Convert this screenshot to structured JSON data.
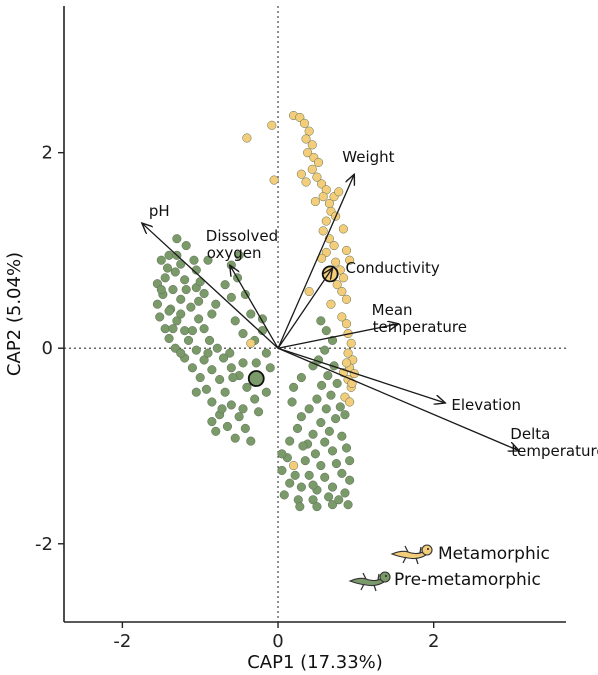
{
  "chart_data": {
    "type": "scatter",
    "title": "",
    "xlabel": "CAP1 (17.33%)",
    "ylabel": "CAP2 (5.04%)",
    "xlim": [
      -2.75,
      3.7
    ],
    "ylim": [
      -2.8,
      3.5
    ],
    "xticks": [
      -2,
      0,
      2
    ],
    "yticks": [
      -2,
      0,
      2
    ],
    "reference_lines": {
      "x": 0,
      "y": 0,
      "style": "dotted"
    },
    "grid": false,
    "legend_position": "bottom-right",
    "colors": {
      "metamorphic": "#f3cd79",
      "pre_metamorphic": "#7a9a6a",
      "point_outline": "#5b6b52",
      "vector": "#1a1a1a"
    },
    "series": [
      {
        "name": "Metamorphic",
        "color": "#f3cd79",
        "centroid": [
          0.67,
          0.76
        ],
        "points": [
          [
            0.2,
            2.38
          ],
          [
            0.28,
            2.36
          ],
          [
            0.34,
            2.3
          ],
          [
            0.4,
            2.22
          ],
          [
            0.36,
            2.14
          ],
          [
            0.44,
            2.08
          ],
          [
            0.38,
            2.0
          ],
          [
            -0.08,
            2.28
          ],
          [
            -0.4,
            2.15
          ],
          [
            0.46,
            1.95
          ],
          [
            0.52,
            1.9
          ],
          [
            0.44,
            1.83
          ],
          [
            0.5,
            1.75
          ],
          [
            0.56,
            1.68
          ],
          [
            0.62,
            1.62
          ],
          [
            0.58,
            1.55
          ],
          [
            0.48,
            1.5
          ],
          [
            0.66,
            1.48
          ],
          [
            0.72,
            1.55
          ],
          [
            0.78,
            1.6
          ],
          [
            0.68,
            1.4
          ],
          [
            0.74,
            1.35
          ],
          [
            0.62,
            1.3
          ],
          [
            0.58,
            1.2
          ],
          [
            0.66,
            1.12
          ],
          [
            0.72,
            1.05
          ],
          [
            0.62,
            0.98
          ],
          [
            0.56,
            0.92
          ],
          [
            0.74,
            0.88
          ],
          [
            0.8,
            0.8
          ],
          [
            0.84,
            0.72
          ],
          [
            0.76,
            0.65
          ],
          [
            0.82,
            0.58
          ],
          [
            0.88,
            0.5
          ],
          [
            0.68,
            0.45
          ],
          [
            0.4,
            0.58
          ],
          [
            0.36,
            1.7
          ],
          [
            0.3,
            1.78
          ],
          [
            -0.05,
            1.72
          ],
          [
            0.84,
            1.22
          ],
          [
            0.88,
            1.0
          ],
          [
            0.92,
            0.9
          ],
          [
            0.82,
            0.32
          ],
          [
            0.88,
            0.25
          ],
          [
            0.9,
            0.15
          ],
          [
            0.94,
            0.05
          ],
          [
            0.9,
            -0.05
          ],
          [
            0.96,
            -0.12
          ],
          [
            0.92,
            -0.2
          ],
          [
            0.98,
            -0.26
          ],
          [
            0.9,
            -0.32
          ],
          [
            0.94,
            -0.4
          ],
          [
            0.86,
            -0.5
          ],
          [
            0.92,
            -0.55
          ],
          [
            0.95,
            -0.36
          ],
          [
            0.88,
            -0.15
          ],
          [
            0.84,
            -0.25
          ],
          [
            0.2,
            -1.2
          ],
          [
            -0.35,
            0.05
          ]
        ]
      },
      {
        "name": "Pre-metamorphic",
        "color": "#7a9a6a",
        "centroid": [
          -0.28,
          -0.31
        ],
        "points": [
          [
            -1.3,
            1.12
          ],
          [
            -1.18,
            1.05
          ],
          [
            -1.4,
            0.95
          ],
          [
            -1.5,
            0.9
          ],
          [
            -1.25,
            0.86
          ],
          [
            -1.08,
            0.9
          ],
          [
            -1.32,
            0.78
          ],
          [
            -1.45,
            0.72
          ],
          [
            -1.2,
            0.7
          ],
          [
            -1.55,
            0.66
          ],
          [
            -1.35,
            0.6
          ],
          [
            -1.05,
            0.62
          ],
          [
            -1.48,
            0.55
          ],
          [
            -1.25,
            0.5
          ],
          [
            -0.95,
            0.56
          ],
          [
            -1.55,
            0.45
          ],
          [
            -1.38,
            0.4
          ],
          [
            -1.12,
            0.42
          ],
          [
            -1.52,
            0.32
          ],
          [
            -1.3,
            0.28
          ],
          [
            -1.02,
            0.3
          ],
          [
            -0.85,
            0.35
          ],
          [
            -1.45,
            0.2
          ],
          [
            -1.2,
            0.18
          ],
          [
            -0.95,
            0.2
          ],
          [
            -1.4,
            0.1
          ],
          [
            -1.15,
            0.08
          ],
          [
            -0.88,
            0.08
          ],
          [
            -1.32,
            0.0
          ],
          [
            -1.05,
            -0.02
          ],
          [
            -0.78,
            0.0
          ],
          [
            -0.62,
            -0.05
          ],
          [
            -1.2,
            -0.1
          ],
          [
            -0.95,
            -0.12
          ],
          [
            -0.7,
            -0.1
          ],
          [
            -1.1,
            -0.2
          ],
          [
            -0.85,
            -0.22
          ],
          [
            -0.6,
            -0.2
          ],
          [
            -1.0,
            -0.3
          ],
          [
            -0.75,
            -0.32
          ],
          [
            -0.5,
            -0.28
          ],
          [
            -0.92,
            -0.42
          ],
          [
            -0.68,
            -0.45
          ],
          [
            -0.4,
            -0.4
          ],
          [
            -0.85,
            -0.55
          ],
          [
            -0.6,
            -0.58
          ],
          [
            -0.3,
            -0.52
          ],
          [
            -0.75,
            -0.68
          ],
          [
            -0.5,
            -0.7
          ],
          [
            -0.65,
            -0.8
          ],
          [
            -0.42,
            -0.82
          ],
          [
            -0.55,
            -0.92
          ],
          [
            -0.35,
            -0.95
          ],
          [
            -0.45,
            -0.62
          ],
          [
            -0.25,
            -0.65
          ],
          [
            -0.15,
            -0.45
          ],
          [
            -0.3,
            0.08
          ],
          [
            -0.45,
            0.15
          ],
          [
            -0.55,
            0.28
          ],
          [
            -0.35,
            0.35
          ],
          [
            -0.2,
            0.3
          ],
          [
            -0.42,
            0.55
          ],
          [
            -0.6,
            0.52
          ],
          [
            -0.52,
            0.72
          ],
          [
            -0.5,
            0.95
          ],
          [
            -0.6,
            0.85
          ],
          [
            -1.1,
            0.18
          ],
          [
            -1.4,
            0.38
          ],
          [
            0.55,
            0.28
          ],
          [
            0.62,
            0.18
          ],
          [
            0.7,
            0.08
          ],
          [
            0.6,
            -0.02
          ],
          [
            0.52,
            -0.12
          ],
          [
            0.72,
            -0.18
          ],
          [
            0.64,
            -0.28
          ],
          [
            0.56,
            -0.38
          ],
          [
            0.76,
            -0.36
          ],
          [
            0.68,
            -0.48
          ],
          [
            0.5,
            -0.52
          ],
          [
            0.8,
            -0.6
          ],
          [
            0.62,
            -0.62
          ],
          [
            0.4,
            -0.62
          ],
          [
            0.74,
            -0.72
          ],
          [
            0.55,
            -0.76
          ],
          [
            0.3,
            -0.7
          ],
          [
            0.86,
            -0.68
          ],
          [
            0.66,
            -0.85
          ],
          [
            0.45,
            -0.88
          ],
          [
            0.25,
            -0.82
          ],
          [
            0.82,
            -0.9
          ],
          [
            0.6,
            -0.96
          ],
          [
            0.38,
            -0.98
          ],
          [
            0.88,
            -1.02
          ],
          [
            0.7,
            -1.05
          ],
          [
            0.48,
            -1.08
          ],
          [
            0.92,
            -1.15
          ],
          [
            0.75,
            -1.18
          ],
          [
            0.55,
            -1.2
          ],
          [
            0.35,
            -1.15
          ],
          [
            0.12,
            -1.12
          ],
          [
            0.05,
            -1.25
          ],
          [
            0.22,
            -1.3
          ],
          [
            0.4,
            -1.3
          ],
          [
            0.6,
            -1.32
          ],
          [
            0.82,
            -1.28
          ],
          [
            0.92,
            -1.35
          ],
          [
            0.7,
            -1.42
          ],
          [
            0.5,
            -1.45
          ],
          [
            0.3,
            -1.42
          ],
          [
            0.15,
            -1.38
          ],
          [
            0.08,
            -1.5
          ],
          [
            0.26,
            -1.55
          ],
          [
            0.45,
            -1.55
          ],
          [
            0.65,
            -1.52
          ],
          [
            0.86,
            -1.48
          ],
          [
            0.9,
            -1.6
          ],
          [
            0.7,
            -1.6
          ],
          [
            0.5,
            -1.62
          ],
          [
            0.28,
            -1.62
          ],
          [
            0.78,
            -1.55
          ],
          [
            0.32,
            -1.0
          ],
          [
            0.15,
            -0.95
          ],
          [
            0.2,
            -0.4
          ],
          [
            0.3,
            -0.3
          ],
          [
            0.45,
            -0.18
          ],
          [
            0.05,
            -1.08
          ],
          [
            -1.25,
            0.35
          ],
          [
            -1.02,
            0.48
          ],
          [
            -0.8,
            0.45
          ],
          [
            -1.5,
            0.6
          ],
          [
            -1.35,
            0.2
          ],
          [
            -0.68,
            0.65
          ],
          [
            -0.9,
            -0.05
          ],
          [
            -1.25,
            -0.05
          ],
          [
            -0.45,
            -0.15
          ],
          [
            -0.28,
            -0.15
          ],
          [
            -0.15,
            -0.05
          ],
          [
            -0.2,
            0.18
          ],
          [
            0.45,
            -1.4
          ],
          [
            0.18,
            -0.55
          ],
          [
            -0.1,
            -0.2
          ],
          [
            -0.72,
            -0.62
          ],
          [
            -0.85,
            -0.75
          ],
          [
            -1.05,
            -0.45
          ],
          [
            -0.8,
            -0.85
          ],
          [
            -0.58,
            -0.3
          ],
          [
            -1.18,
            0.6
          ],
          [
            -1.0,
            0.68
          ],
          [
            -1.42,
            0.82
          ],
          [
            -1.3,
            0.95
          ],
          [
            -1.05,
            0.8
          ],
          [
            -0.9,
            0.9
          ]
        ]
      }
    ],
    "vectors": [
      {
        "label": "pH",
        "x": -1.75,
        "y": 1.28
      },
      {
        "label": "Dissolved oxygen",
        "x": -0.62,
        "y": 0.85
      },
      {
        "label": "Weight",
        "x": 0.98,
        "y": 1.78
      },
      {
        "label": "Conductivity",
        "x": 0.7,
        "y": 0.82
      },
      {
        "label": "Mean temperature",
        "x": 1.55,
        "y": 0.25
      },
      {
        "label": "Elevation",
        "x": 2.15,
        "y": -0.56
      },
      {
        "label": "Delta temperature",
        "x": 3.1,
        "y": -1.05
      }
    ],
    "legend": [
      {
        "label": "Metamorphic",
        "icon": "yellow-salamander-icon",
        "color": "#f3cd79"
      },
      {
        "label": "Pre-metamorphic",
        "icon": "green-salamander-icon",
        "color": "#7a9a6a"
      }
    ]
  }
}
